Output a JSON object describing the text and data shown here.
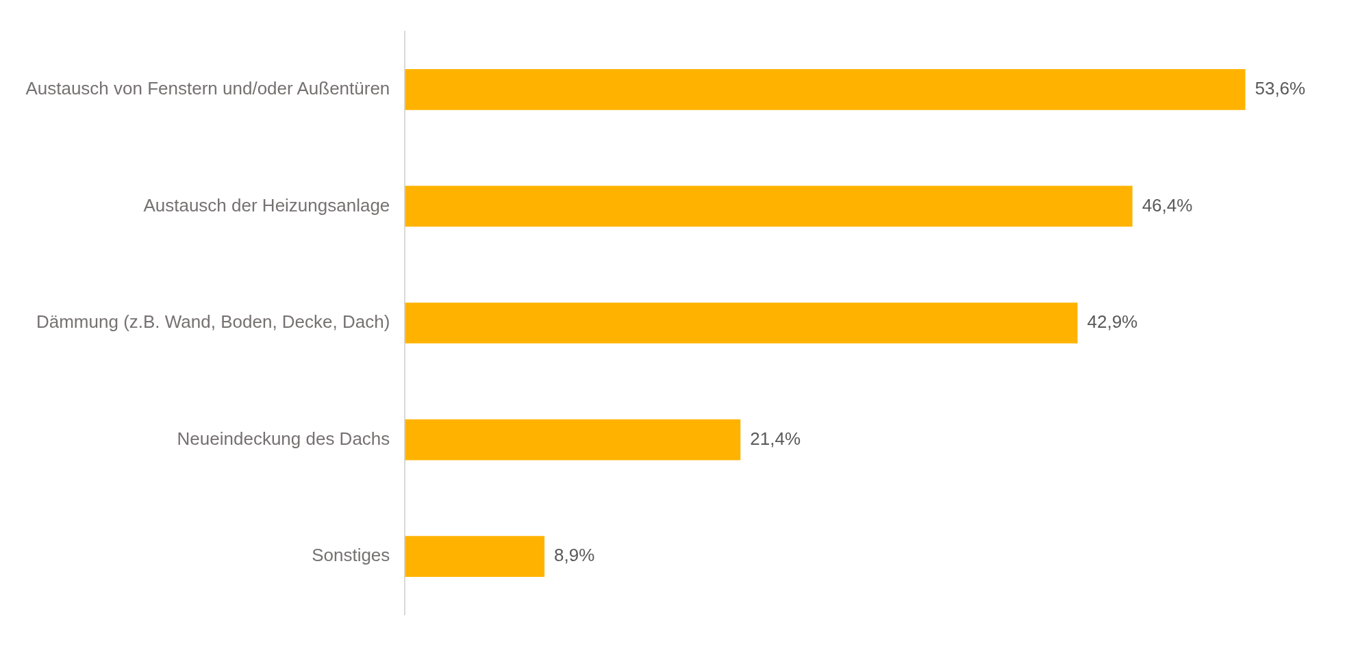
{
  "chart_data": {
    "type": "bar",
    "orientation": "horizontal",
    "categories": [
      "Austausch von Fenstern und/oder Außentüren",
      "Austausch der Heizungsanlage",
      "Dämmung (z.B. Wand, Boden, Decke, Dach)",
      "Neueindeckung des Dachs",
      "Sonstiges"
    ],
    "values": [
      53.6,
      46.4,
      42.9,
      21.4,
      8.9
    ],
    "color": "#ffb300",
    "value_labels": [
      "53,6%",
      "46,4%",
      "42,9%",
      "21,4%",
      "8,9%"
    ],
    "tick_labels": "y",
    "legend": false
  }
}
